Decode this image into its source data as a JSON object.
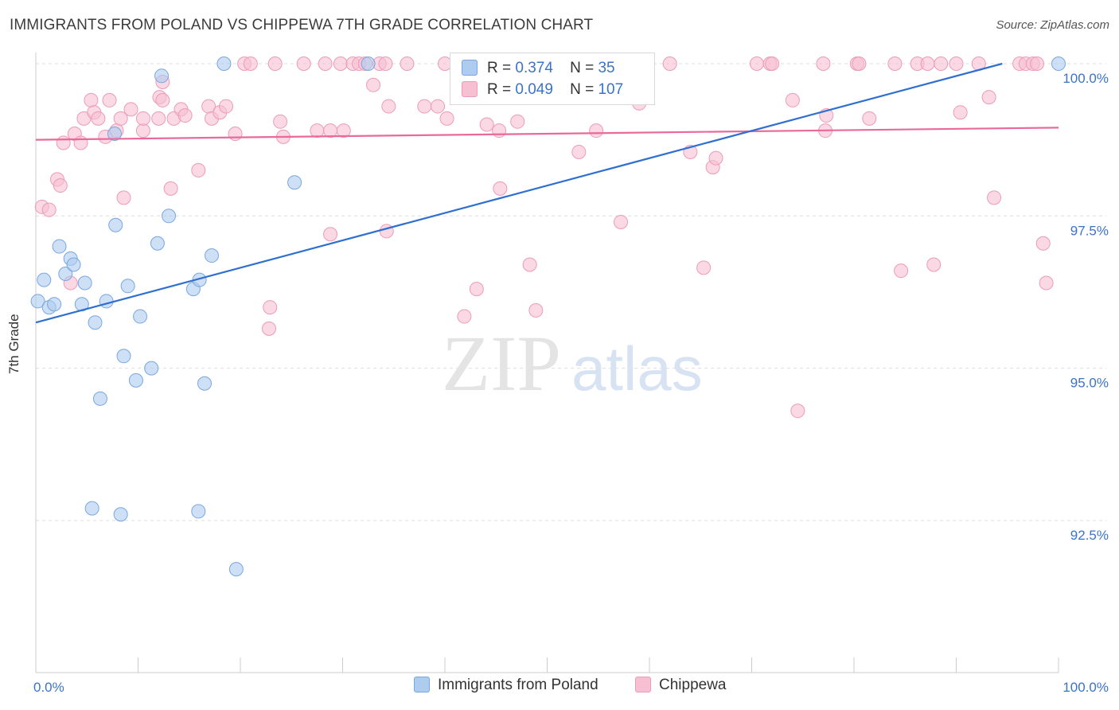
{
  "header": {
    "title": "IMMIGRANTS FROM POLAND VS CHIPPEWA 7TH GRADE CORRELATION CHART",
    "source": "Source: ZipAtlas.com"
  },
  "watermark": {
    "zip": "ZIP",
    "atlas": "atlas"
  },
  "legend": {
    "rows": [
      {
        "r_label": "R =",
        "r_value": "0.374",
        "n_label": "N =",
        "n_value": "35"
      },
      {
        "r_label": "R =",
        "r_value": "0.049",
        "n_label": "N =",
        "n_value": "107"
      }
    ]
  },
  "bottom_legend": {
    "poland": "Immigrants from Poland",
    "chippewa": "Chippewa"
  },
  "colors": {
    "poland_fill": "#aecbf0",
    "poland_stroke": "#7aa6e0",
    "poland_line": "#2f6fd0",
    "chippewa_fill": "#f7bfd2",
    "chippewa_stroke": "#ec9bb8",
    "chippewa_line": "#e8699a",
    "tick_label": "#3b73c9",
    "grid": "#dddddd"
  },
  "chart_data": {
    "type": "scatter",
    "title": "IMMIGRANTS FROM POLAND VS CHIPPEWA 7TH GRADE CORRELATION CHART",
    "xlabel": "",
    "ylabel": "7th Grade",
    "xlim": [
      0,
      100
    ],
    "ylim": [
      90.2,
      100.3
    ],
    "x_tick_labels": [
      "0.0%",
      "100.0%"
    ],
    "y_ticks": [
      100.0,
      97.5,
      95.0,
      92.5
    ],
    "y_tick_labels": [
      "100.0%",
      "97.5%",
      "95.0%",
      "92.5%"
    ],
    "grid": "horizontal dashed",
    "series": [
      {
        "name": "Immigrants from Poland",
        "r": 0.374,
        "n": 35,
        "trend": [
          [
            0,
            95.75
          ],
          [
            94.5,
            100.0
          ]
        ],
        "points": [
          [
            0.2,
            96.1
          ],
          [
            0.8,
            96.45
          ],
          [
            1.3,
            96.0
          ],
          [
            1.8,
            96.05
          ],
          [
            2.3,
            97.0
          ],
          [
            2.9,
            96.55
          ],
          [
            3.4,
            96.8
          ],
          [
            3.7,
            96.7
          ],
          [
            4.5,
            96.05
          ],
          [
            4.8,
            96.4
          ],
          [
            5.5,
            92.7
          ],
          [
            5.8,
            95.75
          ],
          [
            6.3,
            94.5
          ],
          [
            6.9,
            96.1
          ],
          [
            7.7,
            98.85
          ],
          [
            7.8,
            97.35
          ],
          [
            8.3,
            92.6
          ],
          [
            8.6,
            95.2
          ],
          [
            9.0,
            96.35
          ],
          [
            9.8,
            94.8
          ],
          [
            10.2,
            95.85
          ],
          [
            11.3,
            95.0
          ],
          [
            11.9,
            97.05
          ],
          [
            12.3,
            99.8
          ],
          [
            13.0,
            97.5
          ],
          [
            15.4,
            96.3
          ],
          [
            15.9,
            92.65
          ],
          [
            16.0,
            96.45
          ],
          [
            16.5,
            94.75
          ],
          [
            17.2,
            96.85
          ],
          [
            18.4,
            100.0
          ],
          [
            19.6,
            91.7
          ],
          [
            25.3,
            98.05
          ],
          [
            32.5,
            100.0
          ],
          [
            100.0,
            100.0
          ]
        ]
      },
      {
        "name": "Chippewa",
        "r": 0.049,
        "n": 107,
        "trend": [
          [
            0,
            98.75
          ],
          [
            100,
            98.95
          ]
        ],
        "points": [
          [
            0.6,
            97.65
          ],
          [
            1.3,
            97.6
          ],
          [
            2.1,
            98.1
          ],
          [
            2.4,
            98.0
          ],
          [
            2.7,
            98.7
          ],
          [
            3.4,
            96.4
          ],
          [
            3.8,
            98.85
          ],
          [
            4.4,
            98.7
          ],
          [
            4.7,
            99.1
          ],
          [
            5.4,
            99.4
          ],
          [
            5.7,
            99.2
          ],
          [
            6.1,
            99.1
          ],
          [
            6.8,
            98.8
          ],
          [
            7.2,
            99.4
          ],
          [
            7.9,
            98.9
          ],
          [
            8.3,
            99.1
          ],
          [
            8.6,
            97.8
          ],
          [
            9.3,
            99.25
          ],
          [
            10.5,
            98.9
          ],
          [
            10.5,
            99.1
          ],
          [
            12.0,
            99.1
          ],
          [
            12.1,
            99.45
          ],
          [
            12.4,
            99.4
          ],
          [
            12.4,
            99.7
          ],
          [
            13.2,
            97.95
          ],
          [
            13.5,
            99.1
          ],
          [
            14.2,
            99.25
          ],
          [
            14.6,
            99.15
          ],
          [
            15.9,
            98.25
          ],
          [
            16.9,
            99.3
          ],
          [
            17.2,
            99.1
          ],
          [
            18.0,
            99.2
          ],
          [
            18.6,
            99.3
          ],
          [
            19.5,
            98.85
          ],
          [
            20.4,
            100.0
          ],
          [
            21.0,
            100.0
          ],
          [
            22.9,
            96.0
          ],
          [
            22.8,
            95.65
          ],
          [
            23.4,
            100.0
          ],
          [
            23.9,
            99.05
          ],
          [
            24.2,
            98.8
          ],
          [
            26.2,
            100.0
          ],
          [
            27.5,
            98.9
          ],
          [
            28.3,
            100.0
          ],
          [
            28.8,
            98.9
          ],
          [
            28.8,
            97.2
          ],
          [
            29.8,
            100.0
          ],
          [
            30.1,
            98.9
          ],
          [
            31.0,
            100.0
          ],
          [
            31.6,
            100.0
          ],
          [
            32.2,
            100.0
          ],
          [
            33.0,
            99.65
          ],
          [
            33.6,
            100.0
          ],
          [
            34.5,
            99.3
          ],
          [
            34.3,
            97.25
          ],
          [
            34.2,
            100.0
          ],
          [
            36.3,
            100.0
          ],
          [
            38.0,
            99.3
          ],
          [
            39.3,
            99.3
          ],
          [
            40.0,
            100.0
          ],
          [
            40.2,
            99.1
          ],
          [
            41.9,
            95.85
          ],
          [
            43.1,
            96.3
          ],
          [
            43.3,
            100.0
          ],
          [
            44.1,
            99.0
          ],
          [
            45.4,
            97.95
          ],
          [
            45.3,
            98.9
          ],
          [
            47.1,
            99.05
          ],
          [
            48.3,
            96.7
          ],
          [
            48.9,
            95.95
          ],
          [
            49.6,
            100.0
          ],
          [
            53.1,
            98.55
          ],
          [
            54.8,
            98.9
          ],
          [
            55.0,
            100.0
          ],
          [
            57.2,
            97.4
          ],
          [
            59.0,
            99.35
          ],
          [
            62.0,
            100.0
          ],
          [
            64.0,
            98.55
          ],
          [
            65.3,
            96.65
          ],
          [
            66.2,
            98.3
          ],
          [
            66.5,
            98.45
          ],
          [
            70.5,
            100.0
          ],
          [
            71.8,
            100.0
          ],
          [
            72.0,
            100.0
          ],
          [
            74.0,
            99.4
          ],
          [
            74.5,
            94.3
          ],
          [
            77.0,
            100.0
          ],
          [
            77.2,
            98.9
          ],
          [
            77.3,
            99.15
          ],
          [
            80.3,
            100.0
          ],
          [
            80.5,
            100.0
          ],
          [
            81.5,
            99.1
          ],
          [
            84.0,
            100.0
          ],
          [
            84.6,
            96.6
          ],
          [
            86.2,
            100.0
          ],
          [
            87.2,
            100.0
          ],
          [
            87.8,
            96.7
          ],
          [
            88.5,
            100.0
          ],
          [
            90.0,
            100.0
          ],
          [
            90.4,
            99.2
          ],
          [
            92.2,
            100.0
          ],
          [
            93.2,
            99.45
          ],
          [
            93.7,
            97.8
          ],
          [
            96.2,
            100.0
          ],
          [
            96.8,
            100.0
          ],
          [
            97.5,
            100.0
          ],
          [
            97.9,
            100.0
          ],
          [
            98.5,
            97.05
          ],
          [
            98.8,
            96.4
          ]
        ]
      }
    ]
  }
}
